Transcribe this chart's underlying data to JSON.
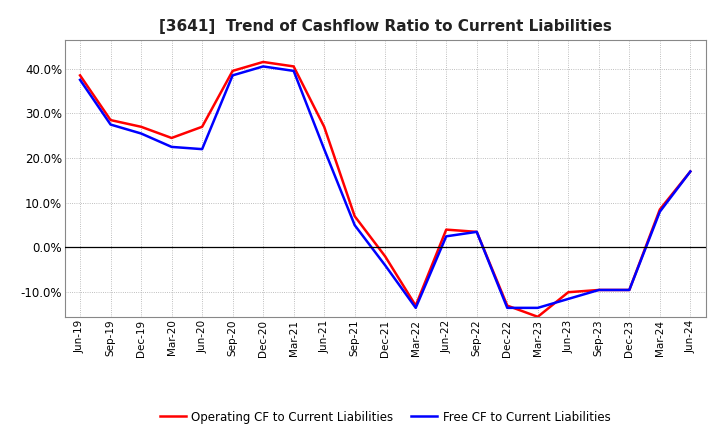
{
  "title": "[3641]  Trend of Cashflow Ratio to Current Liabilities",
  "title_fontsize": 11,
  "x_labels": [
    "Jun-19",
    "Sep-19",
    "Dec-19",
    "Mar-20",
    "Jun-20",
    "Sep-20",
    "Dec-20",
    "Mar-21",
    "Jun-21",
    "Sep-21",
    "Dec-21",
    "Mar-22",
    "Jun-22",
    "Sep-22",
    "Dec-22",
    "Mar-23",
    "Jun-23",
    "Sep-23",
    "Dec-23",
    "Mar-24",
    "Jun-24"
  ],
  "operating_cf": [
    0.385,
    0.285,
    0.27,
    0.245,
    0.27,
    0.395,
    0.415,
    0.405,
    0.27,
    0.07,
    -0.02,
    -0.13,
    0.04,
    0.035,
    -0.13,
    -0.155,
    -0.1,
    -0.095,
    -0.095,
    0.085,
    0.17
  ],
  "free_cf": [
    0.375,
    0.275,
    0.255,
    0.225,
    0.22,
    0.385,
    0.405,
    0.395,
    0.22,
    0.05,
    -0.04,
    -0.135,
    0.025,
    0.035,
    -0.135,
    -0.135,
    -0.115,
    -0.095,
    -0.095,
    0.08,
    0.17
  ],
  "ylim": [
    -0.155,
    0.465
  ],
  "yticks": [
    -0.1,
    0.0,
    0.1,
    0.2,
    0.3,
    0.4
  ],
  "operating_color": "#ff0000",
  "free_color": "#0000ff",
  "grid_color": "#aaaaaa",
  "background_color": "#ffffff",
  "legend_operating": "Operating CF to Current Liabilities",
  "legend_free": "Free CF to Current Liabilities"
}
